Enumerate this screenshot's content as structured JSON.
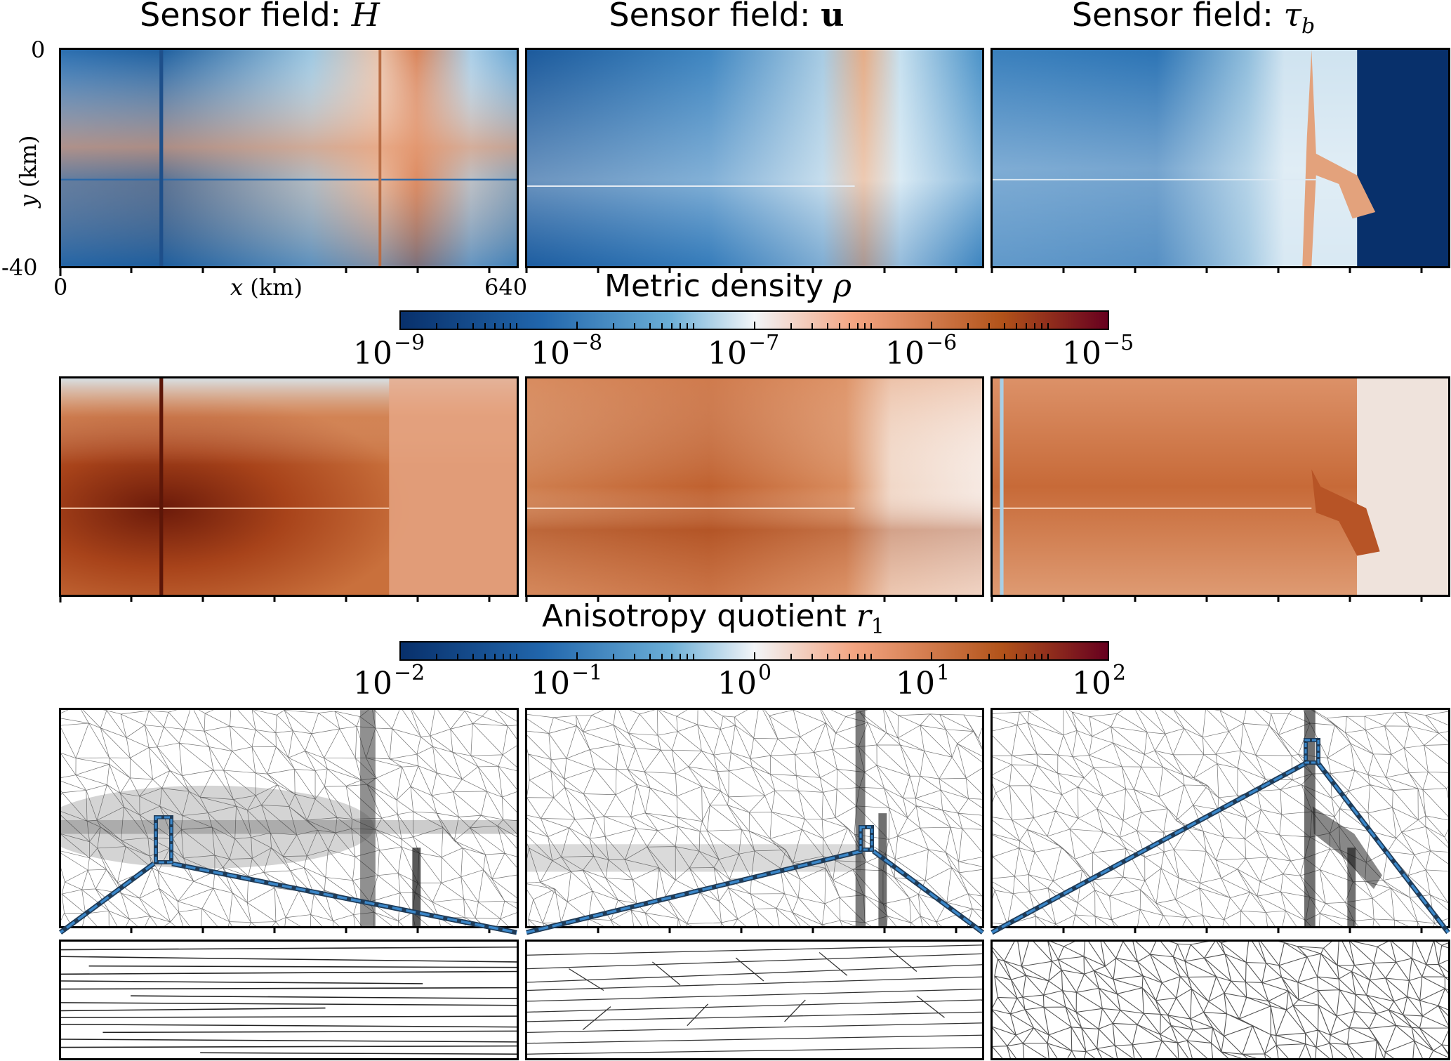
{
  "columns": [
    {
      "prefix": "Sensor field: ",
      "symbol": "H",
      "sub": ""
    },
    {
      "prefix": "Sensor field: ",
      "symbol": "u",
      "sub": ""
    },
    {
      "prefix": "Sensor field: ",
      "symbol": "τ",
      "sub": "b"
    }
  ],
  "axes": {
    "y_label_var": "y",
    "y_label_unit": " (km)",
    "y_tick_top": "0",
    "y_tick_bottom": "-40",
    "x_label_var": "x",
    "x_label_unit": " (km)",
    "x_tick_left": "0",
    "x_tick_right": "640"
  },
  "colorbars": {
    "density": {
      "title": "Metric density ",
      "symbol": "ρ",
      "sub": "",
      "ticks": [
        {
          "base": "10",
          "exp": "−9"
        },
        {
          "base": "10",
          "exp": "−8"
        },
        {
          "base": "10",
          "exp": "−7"
        },
        {
          "base": "10",
          "exp": "−6"
        },
        {
          "base": "10",
          "exp": "−5"
        }
      ],
      "cmap": [
        "#08306b",
        "#2166ac",
        "#6baed6",
        "#f7f7f7",
        "#f4a582",
        "#b2531a",
        "#67001f"
      ]
    },
    "anisotropy": {
      "title": "Anisotropy quotient ",
      "symbol": "r",
      "sub": "1",
      "ticks": [
        {
          "base": "10",
          "exp": "−2"
        },
        {
          "base": "10",
          "exp": "−1"
        },
        {
          "base": "10",
          "exp": "0"
        },
        {
          "base": "10",
          "exp": "1"
        },
        {
          "base": "10",
          "exp": "2"
        }
      ],
      "cmap": [
        "#08306b",
        "#2166ac",
        "#6baed6",
        "#f7f7f7",
        "#f4a582",
        "#b2531a",
        "#67001f"
      ]
    }
  }
}
